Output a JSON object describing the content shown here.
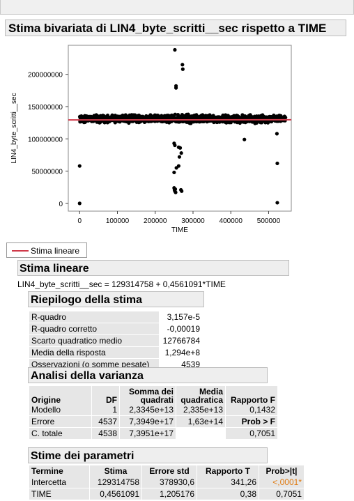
{
  "report": {
    "title": "Stima bivariata di LIN4_byte_scritti__sec rispetto a TIME"
  },
  "legend": {
    "label": "Stima lineare"
  },
  "linear_fit": {
    "header": "Stima lineare",
    "equation": "LIN4_byte_scritti__sec = 129314758 + 0,4561091*TIME"
  },
  "summary": {
    "header": "Riepilogo della stima",
    "rows": [
      {
        "label": "R-quadro",
        "value": "3,157e-5"
      },
      {
        "label": "R-quadro corretto",
        "value": "-0,00019"
      },
      {
        "label": "Scarto quadratico medio",
        "value": "12766784"
      },
      {
        "label": "Media della risposta",
        "value": "1,294e+8"
      },
      {
        "label": "Osservazioni (o somme pesate)",
        "value": "4539"
      }
    ]
  },
  "anova": {
    "header": "Analisi della varianza",
    "columns": {
      "origine": "Origine",
      "df": "DF",
      "somma_top": "Somma dei",
      "somma_bottom": "quadrati",
      "media_top": "Media",
      "media_bottom": "quadratica",
      "rapporto": "Rapporto F"
    },
    "rows": [
      {
        "origine": "Modello",
        "df": "1",
        "somma": "2,3345e+13",
        "media": "2,335e+13",
        "f": "0,1432"
      },
      {
        "origine": "Errore",
        "df": "4537",
        "somma": "7,3949e+17",
        "media": "1,63e+14",
        "f": "Prob > F"
      },
      {
        "origine": "C. totale",
        "df": "4538",
        "somma": "7,3951e+17",
        "media": "",
        "f": "0,7051"
      }
    ]
  },
  "params": {
    "header": "Stime dei parametri",
    "columns": [
      "Termine",
      "Stima",
      "Errore std",
      "Rapporto T",
      "Prob>|t|"
    ],
    "rows": [
      {
        "termine": "Intercetta",
        "stima": "129314758",
        "errore": "378930,6",
        "t": "341,26",
        "p": "<,0001*"
      },
      {
        "termine": "TIME",
        "stima": "0,4561091",
        "errore": "1,205176",
        "t": "0,38",
        "p": "0,7051"
      }
    ]
  },
  "colors": {
    "fit_line": "#d03a4a",
    "significant_p": "#e07a10"
  },
  "chart_data": {
    "type": "scatter",
    "xlabel": "TIME",
    "ylabel": "LIN4_byte_scritti__sec",
    "xlim": [
      -30000,
      560000
    ],
    "ylim": [
      -12000000,
      245000000
    ],
    "x_ticks": [
      0,
      100000,
      200000,
      300000,
      400000,
      500000
    ],
    "x_tick_labels": [
      "0",
      "100000",
      "200000",
      "300000",
      "400000",
      "500000"
    ],
    "y_ticks": [
      0,
      50000000,
      100000000,
      150000000,
      200000000
    ],
    "y_tick_labels": [
      "0",
      "50000000",
      "100000000",
      "150000000",
      "200000000"
    ],
    "fit_line": {
      "intercept": 129314758,
      "slope": 0.4561091
    },
    "main_band": {
      "x_range": [
        0,
        545000
      ],
      "y_range": [
        123000000,
        139000000
      ],
      "n": 4539
    },
    "outliers": [
      {
        "x": 0,
        "y": 0
      },
      {
        "x": 0,
        "y": 58000000
      },
      {
        "x": 252000,
        "y": 238000000
      },
      {
        "x": 255000,
        "y": 182000000
      },
      {
        "x": 255000,
        "y": 179000000
      },
      {
        "x": 272000,
        "y": 215000000
      },
      {
        "x": 273000,
        "y": 208000000
      },
      {
        "x": 250000,
        "y": 93000000
      },
      {
        "x": 252000,
        "y": 90000000
      },
      {
        "x": 262000,
        "y": 87000000
      },
      {
        "x": 266000,
        "y": 86000000
      },
      {
        "x": 269000,
        "y": 78000000
      },
      {
        "x": 264000,
        "y": 72000000
      },
      {
        "x": 262000,
        "y": 58000000
      },
      {
        "x": 250000,
        "y": 48000000
      },
      {
        "x": 256000,
        "y": 55000000
      },
      {
        "x": 250000,
        "y": 24000000
      },
      {
        "x": 251000,
        "y": 21000000
      },
      {
        "x": 252000,
        "y": 19000000
      },
      {
        "x": 254000,
        "y": 17000000
      },
      {
        "x": 253000,
        "y": 22000000
      },
      {
        "x": 268000,
        "y": 21000000
      },
      {
        "x": 270000,
        "y": 19000000
      },
      {
        "x": 436000,
        "y": 99000000
      },
      {
        "x": 522000,
        "y": 108000000
      },
      {
        "x": 523000,
        "y": 62000000
      },
      {
        "x": 523000,
        "y": 1000000
      }
    ]
  }
}
